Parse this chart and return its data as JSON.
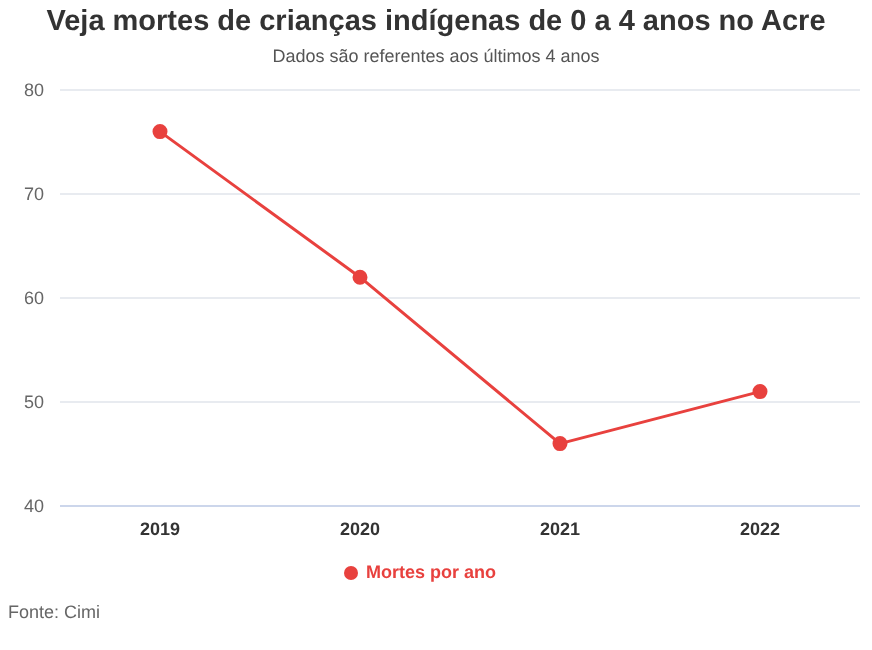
{
  "chart_data": {
    "type": "line",
    "title": "Veja mortes de crianças indígenas de 0 a 4 anos no Acre",
    "subtitle": "Dados são referentes aos últimos 4 anos",
    "categories": [
      "2019",
      "2020",
      "2021",
      "2022"
    ],
    "series": [
      {
        "name": "Mortes por ano",
        "color": "#e8413e",
        "values": [
          76,
          62,
          46,
          51
        ]
      }
    ],
    "ylim": [
      40,
      80
    ],
    "yticks": [
      40,
      50,
      60,
      70,
      80
    ],
    "grid": "y",
    "legend": "bottom",
    "marker": "circle",
    "line_style": "solid",
    "annotations": [
      "Fonte: Cimi"
    ]
  }
}
